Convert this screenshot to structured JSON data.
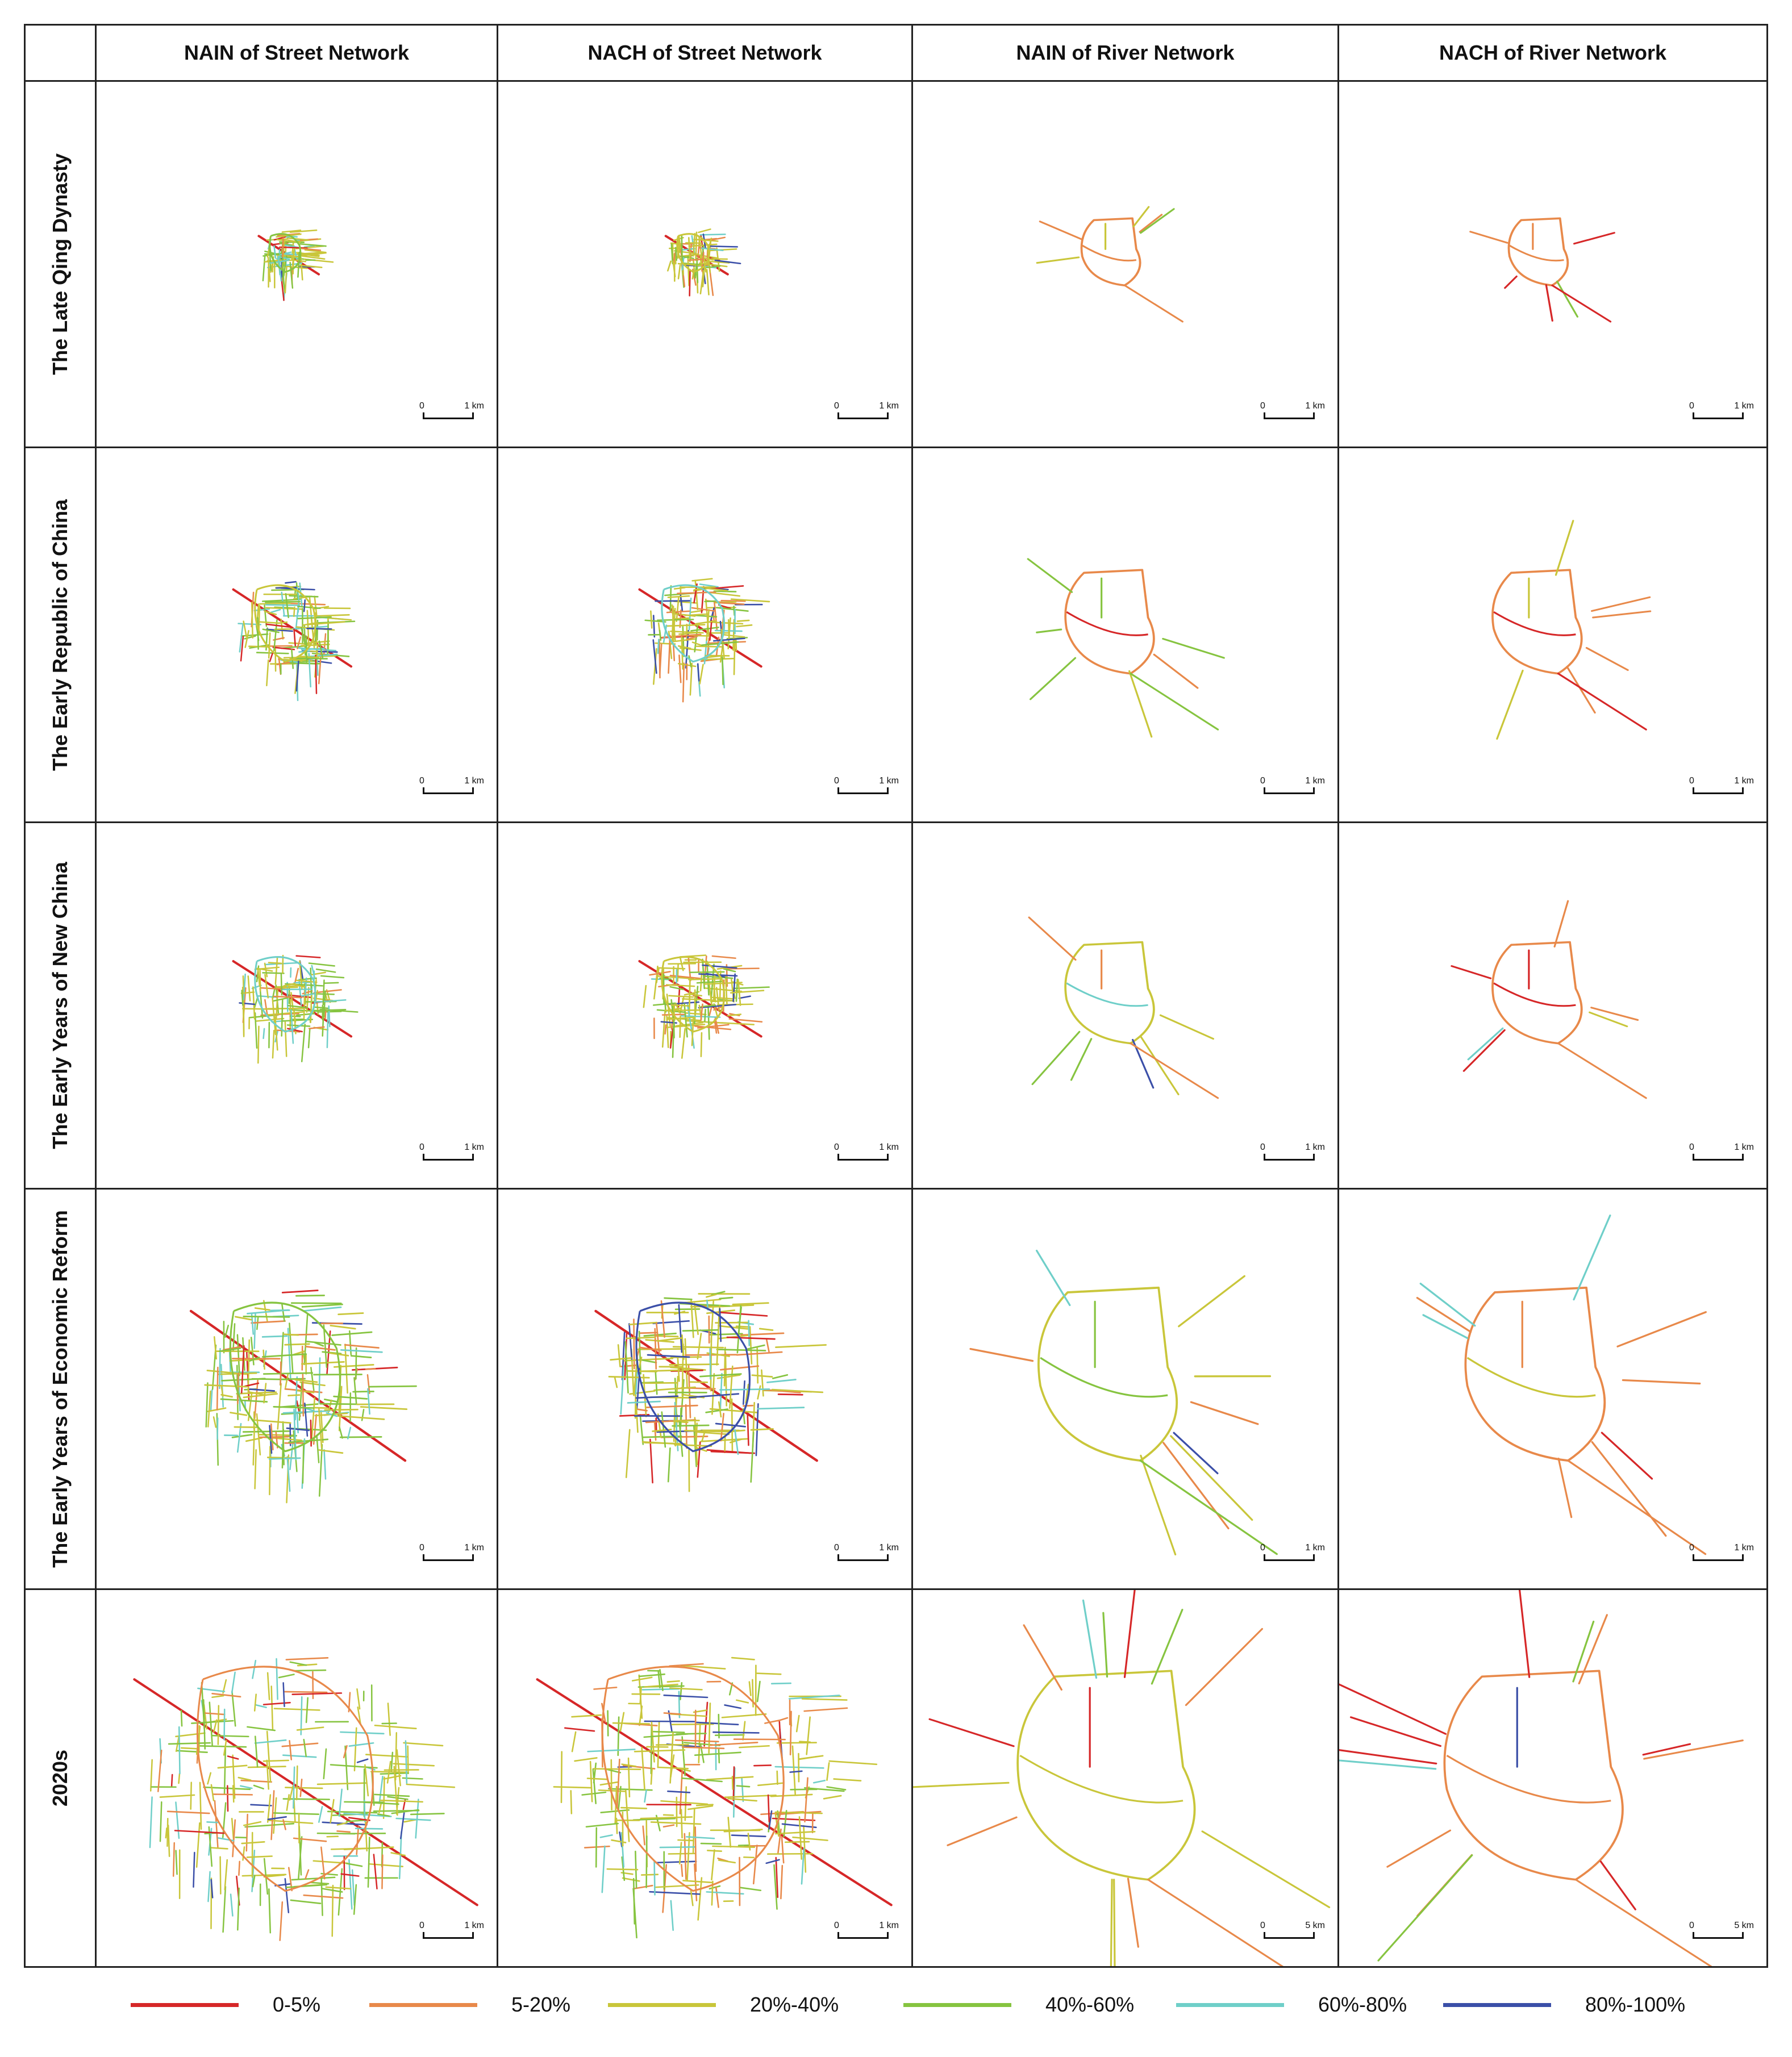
{
  "columns": [
    "NAIN of Street Network",
    "NACH of Street Network",
    "NAIN of River Network",
    "NACH of River  Network"
  ],
  "rows": [
    {
      "label": "The Late Qing Dynasty",
      "scales": [
        "1 km",
        "1 km",
        "1 km",
        "1 km"
      ]
    },
    {
      "label": "The Early Republic of China",
      "scales": [
        "1 km",
        "1 km",
        "1 km",
        "1 km"
      ]
    },
    {
      "label": "The Early Years of New China",
      "scales": [
        "1 km",
        "1 km",
        "1 km",
        "1 km"
      ]
    },
    {
      "label": "The Early Years of Economic Reform",
      "scales": [
        "1 km",
        "1 km",
        "1 km",
        "1 km"
      ]
    },
    {
      "label": "2020s",
      "scales": [
        "1 km",
        "1 km",
        "5 km",
        "5 km"
      ]
    }
  ],
  "scale_zero": "0",
  "legend": [
    {
      "label": "0-5%",
      "color": "#d62728"
    },
    {
      "label": "5-20%",
      "color": "#e8894a"
    },
    {
      "label": "20%-40%",
      "color": "#c9c63a"
    },
    {
      "label": "40%-60%",
      "color": "#86c440"
    },
    {
      "label": "60%-80%",
      "color": "#6fcfc9"
    },
    {
      "label": "80%-100%",
      "color": "#3b4fa8"
    }
  ]
}
